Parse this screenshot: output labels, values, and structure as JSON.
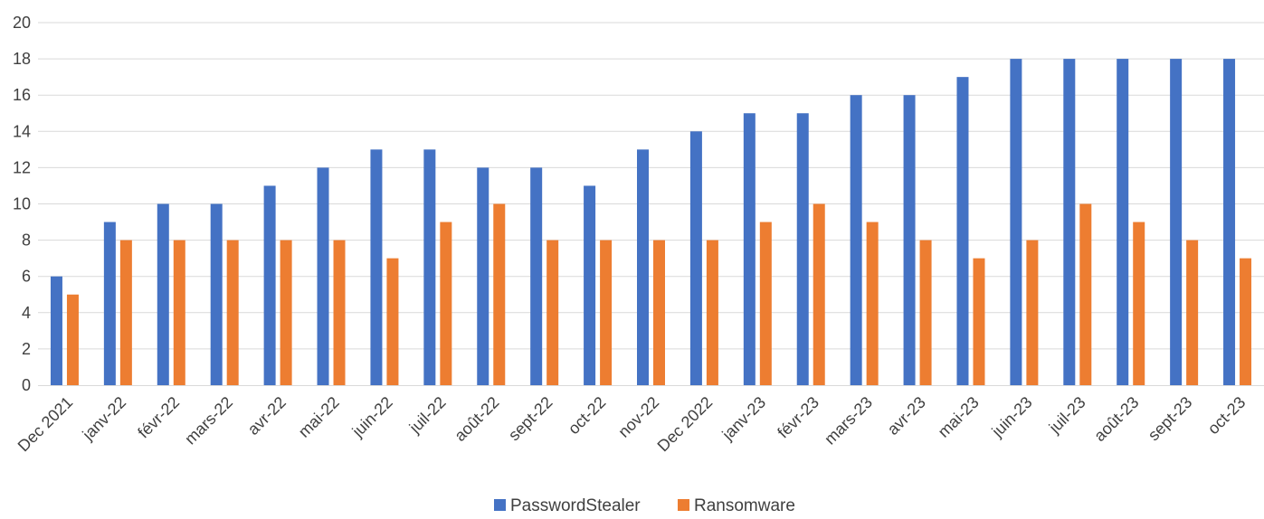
{
  "chart_data": {
    "type": "bar",
    "categories": [
      "Dec 2021",
      "janv-22",
      "févr-22",
      "mars-22",
      "avr-22",
      "mai-22",
      "juin-22",
      "juil-22",
      "août-22",
      "sept-22",
      "oct-22",
      "nov-22",
      "Dec 2022",
      "janv-23",
      "févr-23",
      "mars-23",
      "avr-23",
      "mai-23",
      "juin-23",
      "juil-23",
      "août-23",
      "sept-23",
      "oct-23"
    ],
    "series": [
      {
        "name": "PasswordStealer",
        "color": "#4472C4",
        "values": [
          6,
          9,
          10,
          10,
          11,
          12,
          13,
          13,
          12,
          12,
          11,
          13,
          14,
          15,
          15,
          16,
          16,
          17,
          18,
          18,
          18,
          18,
          18
        ]
      },
      {
        "name": "Ransomware",
        "color": "#ED7D31",
        "values": [
          5,
          8,
          8,
          8,
          8,
          8,
          7,
          9,
          10,
          8,
          8,
          8,
          8,
          9,
          10,
          9,
          8,
          7,
          8,
          10,
          9,
          8,
          7
        ]
      }
    ],
    "title": "",
    "xlabel": "",
    "ylabel": "",
    "ylim": [
      0,
      20
    ],
    "yticks": [
      0,
      2,
      4,
      6,
      8,
      10,
      12,
      14,
      16,
      18,
      20
    ],
    "grid": true,
    "legend_position": "bottom-center"
  }
}
